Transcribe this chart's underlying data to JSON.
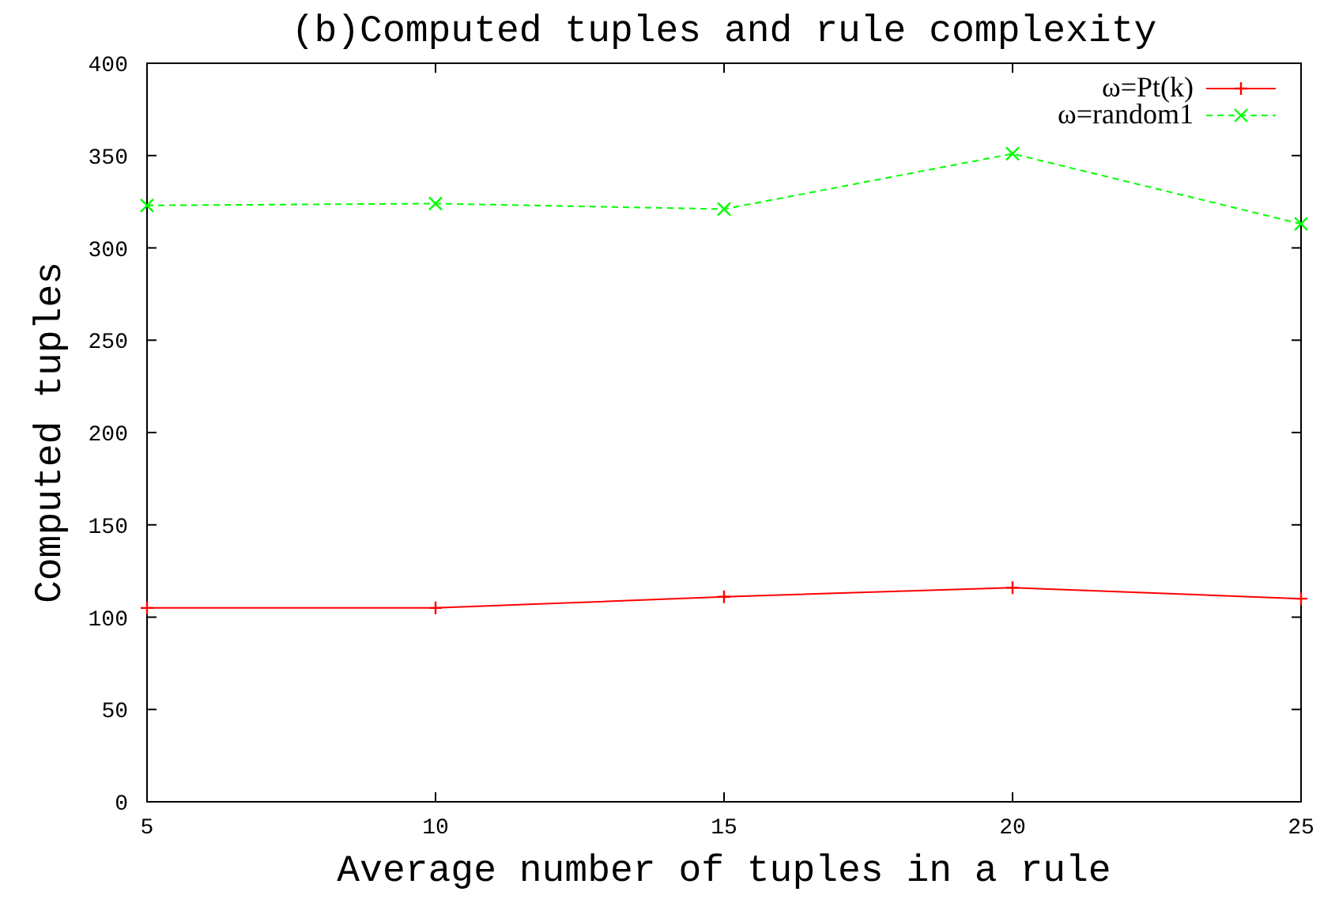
{
  "chart_data": {
    "type": "line",
    "title": "(b)Computed tuples and rule complexity",
    "xlabel": "Average number of tuples in a rule",
    "ylabel": "Computed tuples",
    "x": [
      5,
      10,
      15,
      20,
      25
    ],
    "xlim": [
      5,
      25
    ],
    "xticks": [
      5,
      10,
      15,
      20,
      25
    ],
    "ylim": [
      0,
      400
    ],
    "yticks": [
      0,
      50,
      100,
      150,
      200,
      250,
      300,
      350,
      400
    ],
    "series": [
      {
        "name": "ω=Pt(k)",
        "color": "#ff0000",
        "values": [
          105,
          105,
          111,
          116,
          110
        ],
        "marker": "plus",
        "line_style": "solid"
      },
      {
        "name": "ω=random1",
        "color": "#00ff00",
        "values": [
          323,
          324,
          321,
          351,
          313
        ],
        "marker": "cross",
        "line_style": "dashed"
      }
    ],
    "legend": "top right",
    "grid": false
  }
}
